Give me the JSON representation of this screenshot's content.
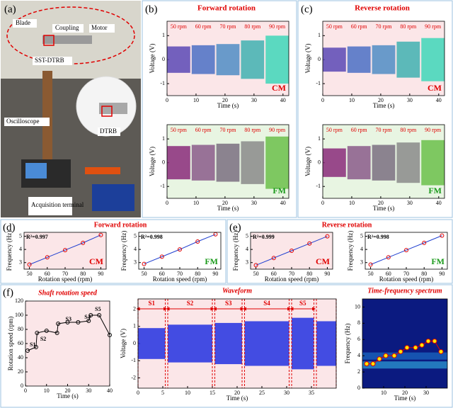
{
  "photo": {
    "label": "(a)",
    "annotations": [
      "Blade",
      "Coupling",
      "Motor",
      "SST-DTRB",
      "DTRB",
      "Oscilloscope",
      "Acquisition terminal"
    ]
  },
  "panels": [
    {
      "label": "(b)",
      "title": "Forward rotation"
    },
    {
      "label": "(c)",
      "title": "Reverse rotation"
    },
    {
      "label": "(d)",
      "title": "Forward rotation"
    },
    {
      "label": "(e)",
      "title": "Reverse rotation"
    },
    {
      "label": "(f)"
    }
  ],
  "chart_data": [
    {
      "type": "waveform",
      "tag": "CM",
      "tag_color": "#e00000",
      "background": "#fbe6e8",
      "xlabel": "Time (s)",
      "ylabel": "Voltage (V)",
      "xlim": [
        0,
        42
      ],
      "xticks": [
        0,
        10,
        20,
        30,
        40
      ],
      "ylim": [
        -1.5,
        1.6
      ],
      "yticks": [
        -1,
        0,
        1
      ],
      "segments": [
        {
          "name": "50 rpm",
          "range": [
            0,
            8
          ],
          "amplitude": 0.55,
          "color": "#5b48b5"
        },
        {
          "name": "60 rpm",
          "range": [
            8.5,
            16.5
          ],
          "amplitude": 0.6,
          "color": "#4a6fc4"
        },
        {
          "name": "70 rpm",
          "range": [
            17,
            25
          ],
          "amplitude": 0.65,
          "color": "#4f8cc4"
        },
        {
          "name": "80 rpm",
          "range": [
            25.5,
            33.5
          ],
          "amplitude": 0.8,
          "color": "#3fb0b0"
        },
        {
          "name": "90 rpm",
          "range": [
            34,
            42
          ],
          "amplitude": 1.0,
          "color": "#3ed6b8"
        }
      ]
    },
    {
      "type": "waveform",
      "tag": "FM",
      "tag_color": "#1a9a1a",
      "background": "#e8f5e2",
      "xlabel": "Time (s)",
      "ylabel": "Voltage (V)",
      "xlim": [
        0,
        42
      ],
      "xticks": [
        0,
        10,
        20,
        30,
        40
      ],
      "ylim": [
        -1.5,
        1.6
      ],
      "yticks": [
        -1,
        0,
        1
      ],
      "segments": [
        {
          "name": "50 rpm",
          "range": [
            0,
            8
          ],
          "amplitude": 0.7,
          "color": "#8a2a7a"
        },
        {
          "name": "60 rpm",
          "range": [
            8.5,
            16.5
          ],
          "amplitude": 0.75,
          "color": "#8a5a8a"
        },
        {
          "name": "70 rpm",
          "range": [
            17,
            25
          ],
          "amplitude": 0.8,
          "color": "#7a6f80"
        },
        {
          "name": "80 rpm",
          "range": [
            25.5,
            33.5
          ],
          "amplitude": 0.9,
          "color": "#8a8a8a"
        },
        {
          "name": "90 rpm",
          "range": [
            34,
            42
          ],
          "amplitude": 1.1,
          "color": "#6bbf4a"
        }
      ]
    },
    {
      "type": "waveform",
      "tag": "CM",
      "tag_color": "#e00000",
      "background": "#fbe6e8",
      "xlabel": "Time (s)",
      "ylabel": "Voltage (V)",
      "xlim": [
        0,
        42
      ],
      "xticks": [
        0,
        10,
        20,
        30,
        40
      ],
      "ylim": [
        -1.5,
        1.6
      ],
      "yticks": [
        -1,
        0,
        1
      ],
      "segments": [
        {
          "name": "50 rpm",
          "range": [
            0,
            8
          ],
          "amplitude": 0.5,
          "color": "#5b48b5"
        },
        {
          "name": "60 rpm",
          "range": [
            8.5,
            16.5
          ],
          "amplitude": 0.55,
          "color": "#4a6fc4"
        },
        {
          "name": "70 rpm",
          "range": [
            17,
            25
          ],
          "amplitude": 0.6,
          "color": "#4f8cc4"
        },
        {
          "name": "80 rpm",
          "range": [
            25.5,
            33.5
          ],
          "amplitude": 0.75,
          "color": "#3fb0b0"
        },
        {
          "name": "90 rpm",
          "range": [
            34,
            42
          ],
          "amplitude": 0.9,
          "color": "#3ed6b8"
        }
      ]
    },
    {
      "type": "waveform",
      "tag": "FM",
      "tag_color": "#1a9a1a",
      "background": "#e8f5e2",
      "xlabel": "Time (s)",
      "ylabel": "Voltage (V)",
      "xlim": [
        0,
        42
      ],
      "xticks": [
        0,
        10,
        20,
        30,
        40
      ],
      "ylim": [
        -1.5,
        1.6
      ],
      "yticks": [
        -1,
        0,
        1
      ],
      "segments": [
        {
          "name": "50 rpm",
          "range": [
            0,
            8
          ],
          "amplitude": 0.6,
          "color": "#8a2a7a"
        },
        {
          "name": "60 rpm",
          "range": [
            8.5,
            16.5
          ],
          "amplitude": 0.7,
          "color": "#8a5a8a"
        },
        {
          "name": "70 rpm",
          "range": [
            17,
            25
          ],
          "amplitude": 0.75,
          "color": "#7a6f80"
        },
        {
          "name": "80 rpm",
          "range": [
            25.5,
            33.5
          ],
          "amplitude": 0.85,
          "color": "#8a8a8a"
        },
        {
          "name": "90 rpm",
          "range": [
            34,
            42
          ],
          "amplitude": 0.95,
          "color": "#6bbf4a"
        }
      ]
    },
    {
      "type": "scatter",
      "tag": "CM",
      "tag_color": "#e00000",
      "background": "#fbe6e8",
      "annotation": "R²=0.997",
      "xlabel": "Rotation speed (rpm)",
      "ylabel": "Frequency (Hz)",
      "x": [
        50,
        60,
        70,
        80,
        90
      ],
      "values": [
        2.85,
        3.4,
        3.95,
        4.5,
        5.1
      ],
      "xlim": [
        47,
        93
      ],
      "xticks": [
        50,
        60,
        70,
        80,
        90
      ],
      "ylim": [
        2.5,
        5.3
      ],
      "yticks": [
        3,
        4,
        5
      ]
    },
    {
      "type": "scatter",
      "tag": "FM",
      "tag_color": "#1a9a1a",
      "background": "#ffffff",
      "annotation": "R²=0.998",
      "xlabel": "Rotation speed (rpm)",
      "ylabel": "Frequency (Hz)",
      "x": [
        50,
        60,
        70,
        80,
        90
      ],
      "values": [
        2.9,
        3.45,
        4.0,
        4.6,
        5.15
      ],
      "xlim": [
        47,
        93
      ],
      "xticks": [
        50,
        60,
        70,
        80,
        90
      ],
      "ylim": [
        2.5,
        5.3
      ],
      "yticks": [
        3,
        4,
        5
      ]
    },
    {
      "type": "scatter",
      "tag": "CM",
      "tag_color": "#e00000",
      "background": "#fbe6e8",
      "annotation": "R²=0.999",
      "xlabel": "Rotation speed (rpm)",
      "ylabel": "Frequency (Hz)",
      "x": [
        50,
        60,
        70,
        80,
        90
      ],
      "values": [
        2.8,
        3.35,
        3.9,
        4.45,
        5.0
      ],
      "xlim": [
        47,
        93
      ],
      "xticks": [
        50,
        60,
        70,
        80,
        90
      ],
      "ylim": [
        2.5,
        5.3
      ],
      "yticks": [
        3,
        4,
        5
      ]
    },
    {
      "type": "scatter",
      "tag": "FM",
      "tag_color": "#1a9a1a",
      "background": "#ffffff",
      "annotation": "R²=0.998",
      "xlabel": "Rotation speed (rpm)",
      "ylabel": "Frequency (Hz)",
      "x": [
        50,
        60,
        70,
        80,
        90
      ],
      "values": [
        2.85,
        3.4,
        3.95,
        4.5,
        5.05
      ],
      "xlim": [
        47,
        93
      ],
      "xticks": [
        50,
        60,
        70,
        80,
        90
      ],
      "ylim": [
        2.5,
        5.3
      ],
      "yticks": [
        3,
        4,
        5
      ]
    },
    {
      "type": "line",
      "title": "Shaft rotation speed",
      "background": "#fbe6e8",
      "xlabel": "Time (s)",
      "ylabel": "Rotation speed (rpm)",
      "x": [
        1,
        5,
        5.5,
        10,
        15,
        15.5,
        20,
        25,
        30,
        31,
        35,
        40
      ],
      "values": [
        50,
        55,
        75,
        78,
        75,
        88,
        90,
        90,
        92,
        100,
        100,
        72
      ],
      "annotations": [
        "S1",
        "S2",
        "S3",
        "S4",
        "S5"
      ],
      "xlim": [
        0,
        40
      ],
      "xticks": [
        0,
        10,
        20,
        30,
        40
      ],
      "ylim": [
        0,
        120
      ],
      "yticks": [
        0,
        20,
        40,
        60,
        80,
        100,
        120
      ]
    },
    {
      "type": "waveform",
      "title": "Waveform",
      "background": "#fbe6e8",
      "arrows": true,
      "xlabel": "Time (s)",
      "ylabel": "Voltage (V)",
      "xlim": [
        0,
        40
      ],
      "xticks": [
        0,
        5,
        10,
        15,
        20,
        25,
        30,
        35
      ],
      "ylim": [
        -2.6,
        2.6
      ],
      "yticks": [
        -2,
        -1,
        0,
        1,
        2
      ],
      "segments": [
        {
          "name": "S1",
          "range": [
            0,
            5.5
          ],
          "amplitude": 0.9,
          "color": "#2230e0"
        },
        {
          "name": "S2",
          "range": [
            6,
            15
          ],
          "amplitude": 1.1,
          "color": "#2230e0"
        },
        {
          "name": "S3",
          "range": [
            15.5,
            21
          ],
          "amplitude": 1.2,
          "color": "#2230e0"
        },
        {
          "name": "S4",
          "range": [
            21.5,
            30.5
          ],
          "amplitude": 1.3,
          "color": "#2230e0"
        },
        {
          "name": "S5",
          "range": [
            31,
            35.5
          ],
          "amplitude": 1.5,
          "color": "#2230e0"
        },
        {
          "name": null,
          "range": [
            36,
            40
          ],
          "amplitude": 1.3,
          "color": "#2230e0"
        }
      ]
    },
    {
      "type": "spectrum",
      "title": "Time-frequency spectrum",
      "background": "#0b1a80",
      "xlabel": "Time (s)",
      "ylabel": "Frequency (Hz)",
      "x": [
        2,
        5,
        8,
        11,
        15,
        18,
        21,
        25,
        28,
        31,
        34,
        37
      ],
      "values": [
        3,
        3,
        3.6,
        4,
        4,
        4.5,
        5,
        5,
        5.3,
        5.8,
        5.8,
        4.5
      ],
      "xlim": [
        0,
        40
      ],
      "xticks": [
        10,
        20,
        30
      ],
      "ylim": [
        0,
        11
      ],
      "yticks": [
        0,
        2,
        4,
        6,
        8,
        10
      ]
    }
  ]
}
